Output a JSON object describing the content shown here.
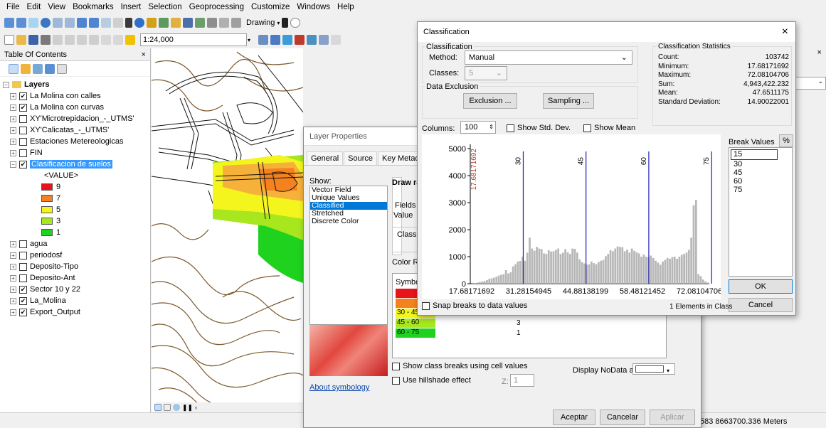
{
  "menu": [
    "File",
    "Edit",
    "View",
    "Bookmarks",
    "Insert",
    "Selection",
    "Geoprocessing",
    "Customize",
    "Windows",
    "Help"
  ],
  "toolbar": {
    "scale": "1:24,000",
    "drawing": "Drawing"
  },
  "toc": {
    "title": "Table Of Contents",
    "pin": " ×",
    "layers_label": "Layers",
    "items": [
      {
        "name": "La Molina con calles",
        "checked": true
      },
      {
        "name": "La Molina con curvas",
        "checked": true
      },
      {
        "name": "XY'Microtrepidacion_-_UTMS'",
        "checked": false
      },
      {
        "name": "XY'Calicatas_-_UTMS'",
        "checked": false
      },
      {
        "name": "Estaciones Metereologicas",
        "checked": false
      },
      {
        "name": "FIN",
        "checked": false
      },
      {
        "name": "Clasificacion de suelos",
        "checked": true,
        "selected": true
      }
    ],
    "value_label": "<VALUE>",
    "legend": [
      {
        "label": "9",
        "color": "#e8141a"
      },
      {
        "label": "7",
        "color": "#f5821f"
      },
      {
        "label": "5",
        "color": "#f5f51e"
      },
      {
        "label": "3",
        "color": "#a8e61e"
      },
      {
        "label": "1",
        "color": "#1ed21e"
      }
    ],
    "items2": [
      {
        "name": "agua",
        "checked": false
      },
      {
        "name": "periodosf",
        "checked": false
      },
      {
        "name": "Deposito-Tipo",
        "checked": false
      },
      {
        "name": "Deposito-Ant",
        "checked": false
      },
      {
        "name": "Sector 10 y 22",
        "checked": true
      },
      {
        "name": "La_Molina",
        "checked": true
      },
      {
        "name": "Export_Output",
        "checked": true
      }
    ]
  },
  "layer_props": {
    "title": "Layer Properties",
    "tabs": [
      "General",
      "Source",
      "Key Metadata"
    ],
    "show_label": "Show:",
    "show_items": [
      "Vector Field",
      "Unique Values",
      "Classified",
      "Stretched",
      "Discrete Color"
    ],
    "selected": "Classified",
    "draw_raster": "Draw ra",
    "fields": "Fields",
    "value": "Value",
    "classify": "Classifi",
    "color_ramp": "Color Ra",
    "symbol": "Symbol",
    "classes": [
      {
        "range": "",
        "count": "",
        "color": "#e8141a"
      },
      {
        "range": "",
        "count": "",
        "color": "#f5821f"
      },
      {
        "range": "30 - 45",
        "count": "5",
        "color": "#f5f51e"
      },
      {
        "range": "45 - 60",
        "count": "3",
        "color": "#a8e61e"
      },
      {
        "range": "60 - 75",
        "count": "1",
        "color": "#1ed21e"
      }
    ],
    "show_breaks": "Show class breaks using cell values",
    "hillshade": "Use hillshade effect",
    "z_label": "Z:",
    "z_value": "1",
    "nodata": "Display NoData as",
    "about": "About symbology",
    "ok": "Aceptar",
    "cancel": "Cancelar",
    "apply": "Aplicar"
  },
  "classification": {
    "title": "Classification",
    "close": "×",
    "group_classification": "Classification",
    "method_label": "Method:",
    "method": "Manual",
    "classes_label": "Classes:",
    "classes": "5",
    "exclusion_group": "Data Exclusion",
    "exclusion_btn": "Exclusion ...",
    "sampling_btn": "Sampling ...",
    "columns_label": "Columns:",
    "columns": "100",
    "show_std": "Show Std. Dev.",
    "show_mean": "Show Mean",
    "stats_title": "Classification Statistics",
    "stats": [
      {
        "k": "Count:",
        "v": "103742"
      },
      {
        "k": "Minimum:",
        "v": "17.68171692"
      },
      {
        "k": "Maximum:",
        "v": "72.08104706"
      },
      {
        "k": "Sum:",
        "v": "4,943,422.232"
      },
      {
        "k": "Mean:",
        "v": "47.6511175"
      },
      {
        "k": "Standard Deviation:",
        "v": "14.90022001"
      }
    ],
    "break_values_label": "Break Values",
    "pct": "%",
    "break_input": "15",
    "breaks": [
      "30",
      "45",
      "60",
      "75"
    ],
    "snap": "Snap breaks to data values",
    "elements": "1 Elements in Class",
    "ok": "OK",
    "cancel": "Cancel"
  },
  "chart_data": {
    "type": "bar",
    "xlim": [
      17.68171692,
      72.08104706
    ],
    "ylim": [
      0,
      5000
    ],
    "y_ticks": [
      "0",
      "1000",
      "2000",
      "3000",
      "4000",
      "5000"
    ],
    "x_ticks": [
      "17.68171692",
      "31.28154945",
      "44.88138199",
      "58.48121452",
      "72.08104706"
    ],
    "break_lines": [
      {
        "label": "30",
        "value": 30
      },
      {
        "label": "45",
        "value": 45
      },
      {
        "label": "60",
        "value": 60
      },
      {
        "label": "75",
        "value": 75
      }
    ],
    "min_label": "17.68171692",
    "values": [
      30,
      20,
      40,
      60,
      80,
      100,
      130,
      180,
      200,
      220,
      260,
      300,
      330,
      350,
      500,
      380,
      420,
      640,
      720,
      820,
      840,
      1000,
      850,
      1150,
      1700,
      1300,
      1220,
      1360,
      1300,
      1280,
      1120,
      1100,
      1240,
      1190,
      1200,
      1250,
      1300,
      1100,
      1150,
      1280,
      1160,
      1100,
      1300,
      1290,
      1150,
      900,
      800,
      750,
      700,
      720,
      820,
      760,
      720,
      800,
      850,
      880,
      1020,
      1100,
      1240,
      1200,
      1300,
      1380,
      1360,
      1350,
      1200,
      1260,
      1150,
      1300,
      1220,
      1160,
      1120,
      1000,
      1080,
      1000,
      980,
      1040,
      950,
      850,
      780,
      700,
      820,
      880,
      950,
      920,
      980,
      1000,
      920,
      1000,
      1070,
      1100,
      1150,
      1250,
      1700,
      2900,
      3100,
      350,
      280,
      150,
      80,
      40
    ]
  },
  "status": {
    "coords": "583 8663700.336 Meters"
  },
  "right_pane": {
    "pin": " ×"
  }
}
